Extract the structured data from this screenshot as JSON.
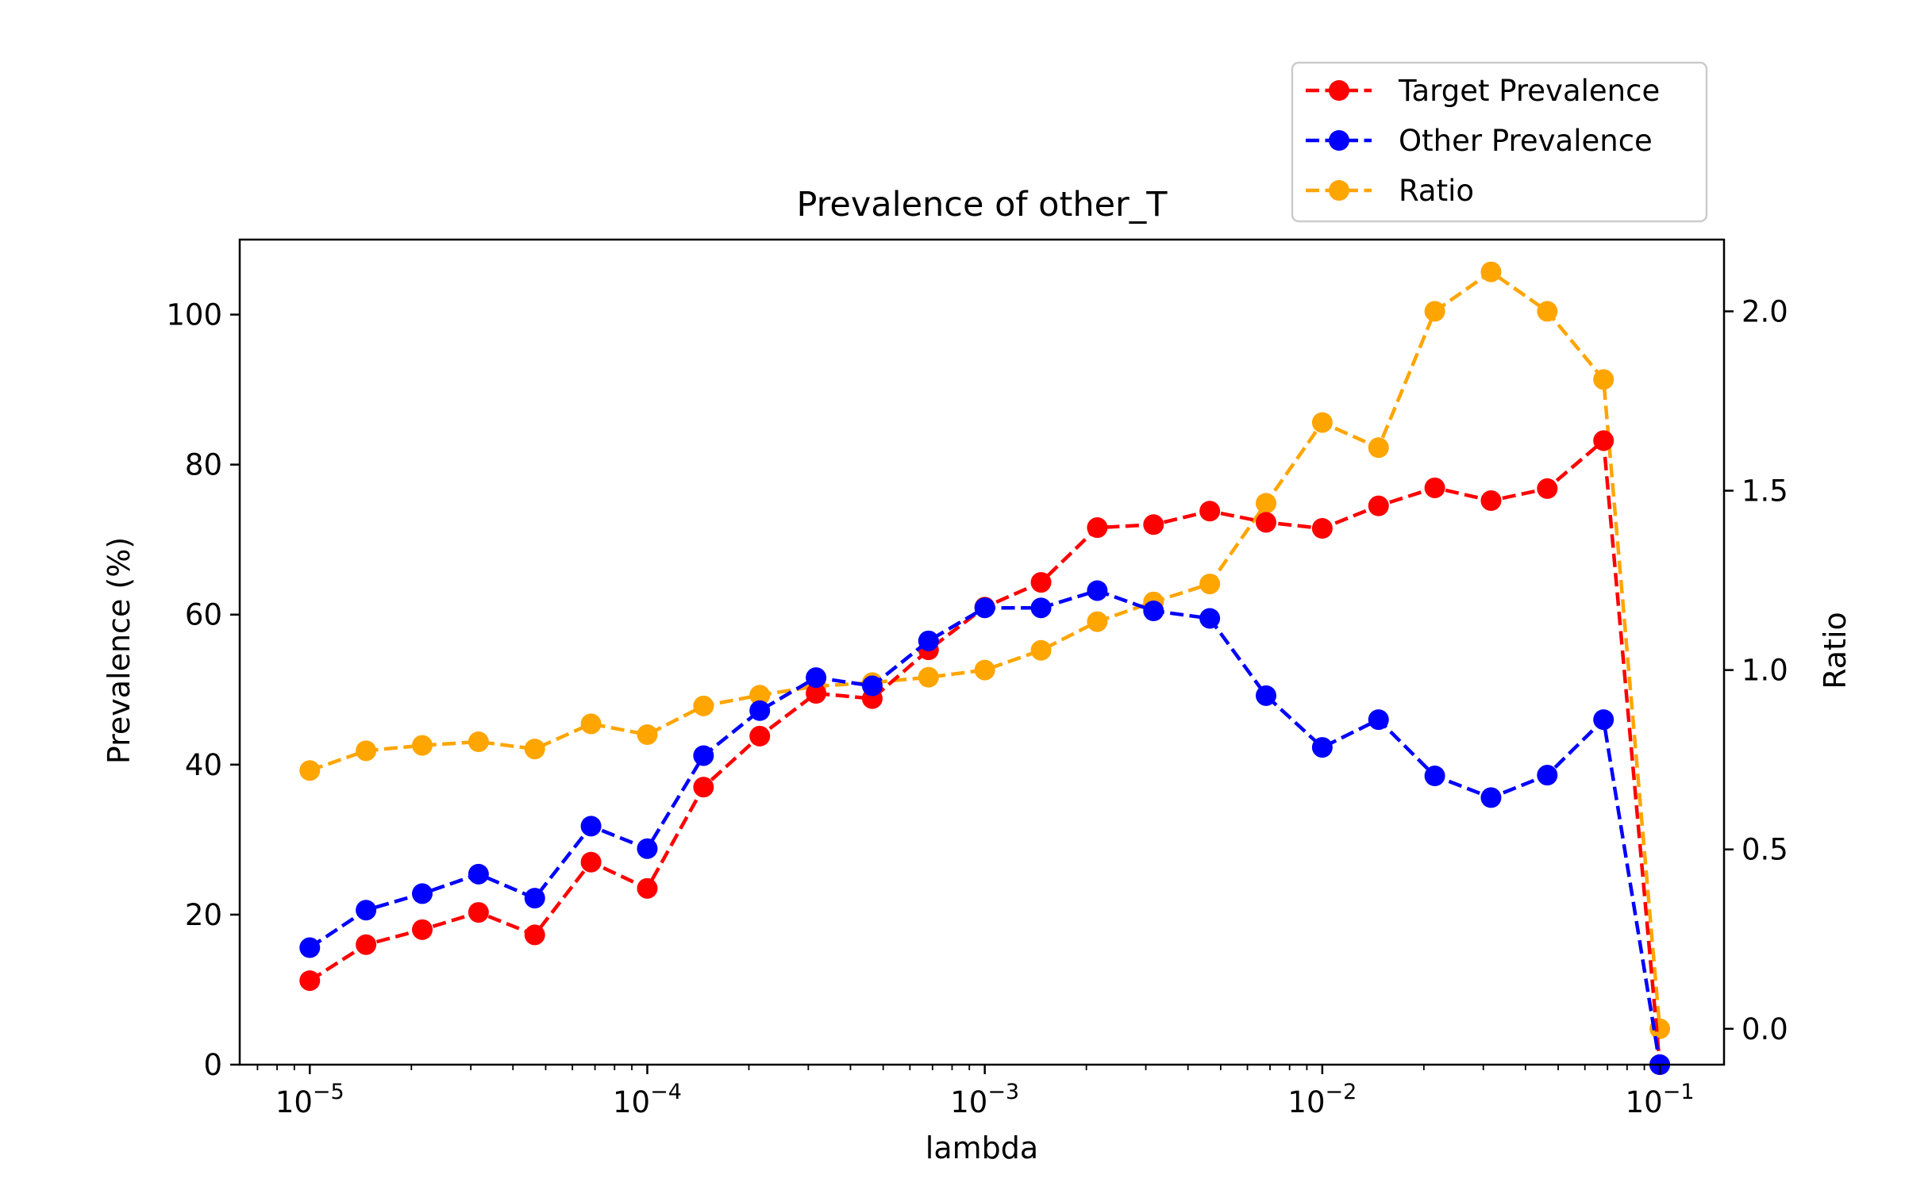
{
  "chart_data": {
    "type": "line",
    "title": "Prevalence of other_T",
    "xlabel": "lambda",
    "ylabel": "Prevalence (%)",
    "y2label": "Ratio",
    "xscale": "log",
    "x": [
      1e-05,
      1.4678e-05,
      2.1544e-05,
      3.1623e-05,
      4.6416e-05,
      6.8129e-05,
      0.0001,
      0.00014678,
      0.00021544,
      0.00031623,
      0.00046416,
      0.00068129,
      0.001,
      0.0014678,
      0.0021544,
      0.0031623,
      0.0046416,
      0.0068129,
      0.01,
      0.014678,
      0.021544,
      0.031623,
      0.046416,
      0.068129,
      0.1
    ],
    "xlim": [
      6.2e-06,
      0.155
    ],
    "ylim": [
      0,
      110
    ],
    "y2lim": [
      -0.1,
      2.2
    ],
    "xticks": [
      {
        "value": 1e-05,
        "base": "10",
        "exp": "−5"
      },
      {
        "value": 0.0001,
        "base": "10",
        "exp": "−4"
      },
      {
        "value": 0.001,
        "base": "10",
        "exp": "−3"
      },
      {
        "value": 0.01,
        "base": "10",
        "exp": "−2"
      },
      {
        "value": 0.1,
        "base": "10",
        "exp": "−1"
      }
    ],
    "yticks": [
      "0",
      "20",
      "40",
      "60",
      "80",
      "100"
    ],
    "y2ticks": [
      "0.0",
      "0.5",
      "1.0",
      "1.5",
      "2.0"
    ],
    "series": [
      {
        "name": "Target Prevalence",
        "axis": "left",
        "color": "#ff0000",
        "values": [
          11.2,
          16.0,
          18.0,
          20.3,
          17.3,
          27.0,
          23.5,
          37.0,
          43.8,
          49.5,
          48.8,
          55.3,
          61.0,
          64.3,
          71.6,
          72.0,
          73.8,
          72.3,
          71.5,
          74.5,
          76.9,
          75.2,
          76.8,
          83.2,
          0.0
        ]
      },
      {
        "name": "Other Prevalence",
        "axis": "left",
        "color": "#0000ff",
        "values": [
          15.6,
          20.6,
          22.8,
          25.4,
          22.2,
          31.8,
          28.8,
          41.2,
          47.2,
          51.6,
          50.5,
          56.5,
          60.9,
          60.9,
          63.2,
          60.5,
          59.5,
          49.2,
          42.3,
          46.0,
          38.5,
          35.6,
          38.6,
          46.0,
          0.0
        ]
      },
      {
        "name": "Ratio",
        "axis": "right",
        "color": "#ffa500",
        "values": [
          0.72,
          0.775,
          0.79,
          0.8,
          0.78,
          0.85,
          0.82,
          0.9,
          0.93,
          0.955,
          0.965,
          0.98,
          1.0,
          1.055,
          1.135,
          1.19,
          1.24,
          1.465,
          1.69,
          1.62,
          2.0,
          2.11,
          2.0,
          1.81,
          0.0
        ]
      }
    ],
    "legend": "top-right, above plot"
  }
}
